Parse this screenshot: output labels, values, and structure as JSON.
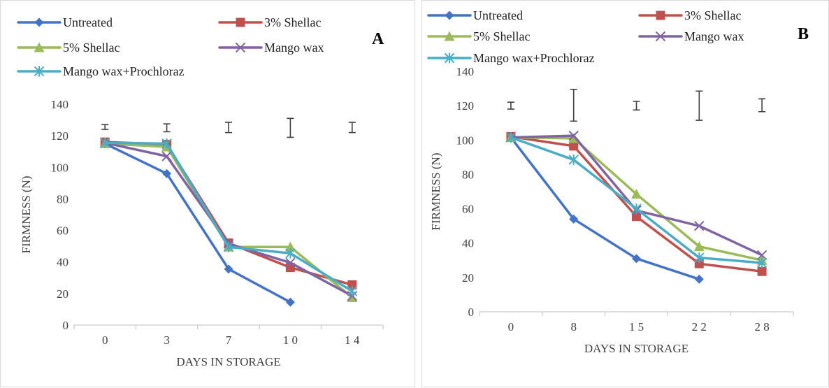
{
  "chart_data": [
    {
      "type": "line",
      "panel_label": "A",
      "xlabel": "DAYS IN STORAGE",
      "ylabel": "FIRMNESS (N)",
      "categories": [
        "0",
        "3",
        "7",
        "1 0",
        "1 4"
      ],
      "ylim": [
        0,
        140
      ],
      "yticks": [
        0,
        20,
        40,
        60,
        80,
        100,
        120,
        140
      ],
      "grid": false,
      "legend": "top",
      "series": [
        {
          "name": "Untreated",
          "color": "#4472C4",
          "marker": "diamond",
          "values": [
            115,
            96,
            35.5,
            14.5,
            null
          ]
        },
        {
          "name": "3% Shellac",
          "color": "#C0504D",
          "marker": "square",
          "values": [
            116,
            114.5,
            52,
            36.5,
            25.5
          ]
        },
        {
          "name": "5% Shellac",
          "color": "#9BBB59",
          "marker": "triangle",
          "values": [
            115,
            113,
            49.5,
            49.5,
            17.5
          ]
        },
        {
          "name": "Mango wax",
          "color": "#8064A2",
          "marker": "x",
          "values": [
            115.5,
            107,
            51.5,
            39.5,
            18.5
          ]
        },
        {
          "name": "Mango wax+Prochloraz",
          "color": "#4BACC6",
          "marker": "star",
          "values": [
            115.5,
            115,
            49.5,
            45.5,
            21.5
          ]
        }
      ],
      "error_bars": [
        {
          "low": 124,
          "high": 127
        },
        {
          "low": 122.5,
          "high": 127.5
        },
        {
          "low": 122,
          "high": 128.5
        },
        {
          "low": 119,
          "high": 131
        },
        {
          "low": 122,
          "high": 128.5
        }
      ]
    },
    {
      "type": "line",
      "panel_label": "B",
      "xlabel": "DAYS IN STORAGE",
      "ylabel": "FIRMNESS (N)",
      "categories": [
        "0",
        "8",
        "1 5",
        "2 2",
        "2 8"
      ],
      "ylim": [
        0,
        140
      ],
      "yticks": [
        0,
        20,
        40,
        60,
        80,
        100,
        120,
        140
      ],
      "grid": false,
      "legend": "top",
      "series": [
        {
          "name": "Untreated",
          "color": "#4472C4",
          "marker": "diamond",
          "values": [
            101.5,
            54,
            31,
            19,
            null
          ]
        },
        {
          "name": "3% Shellac",
          "color": "#C0504D",
          "marker": "square",
          "values": [
            102,
            96.5,
            55.5,
            28,
            23.5
          ]
        },
        {
          "name": "5% Shellac",
          "color": "#9BBB59",
          "marker": "triangle",
          "values": [
            101.5,
            101,
            68.5,
            38,
            30
          ]
        },
        {
          "name": "Mango wax",
          "color": "#8064A2",
          "marker": "x",
          "values": [
            101.5,
            102.5,
            59,
            50,
            33
          ]
        },
        {
          "name": "Mango wax+Prochloraz",
          "color": "#4BACC6",
          "marker": "star",
          "values": [
            101.5,
            88.5,
            60,
            31.5,
            28.5
          ]
        }
      ],
      "error_bars": [
        {
          "low": 118,
          "high": 122
        },
        {
          "low": 111,
          "high": 129.5
        },
        {
          "low": 117.5,
          "high": 122.5
        },
        {
          "low": 111.5,
          "high": 128.5
        },
        {
          "low": 116.5,
          "high": 124
        }
      ]
    }
  ]
}
